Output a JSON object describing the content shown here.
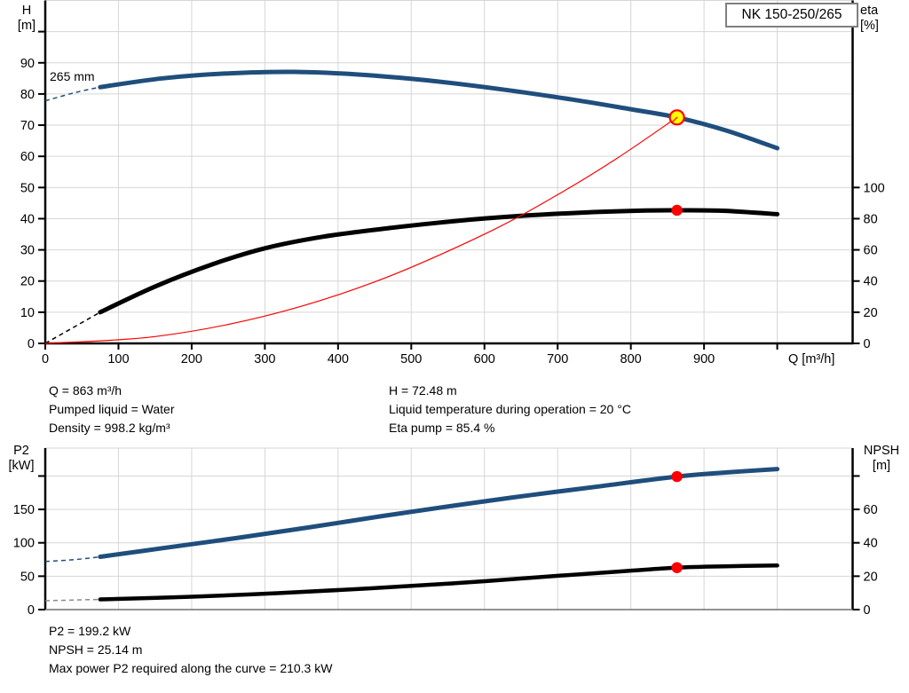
{
  "title_box": "NK 150-250/265",
  "colors": {
    "curve_blue": "#1f4e7c",
    "curve_black": "#000000",
    "system_red": "#fe0000",
    "duty_yellow": "#ffff00",
    "grid": "#d6d6d6",
    "frame": "#000000",
    "axis_gray": "#6e6e6e",
    "box_border": "#7f7f7f"
  },
  "results_top": {
    "left": [
      "Q = 863 m³/h",
      "Pumped liquid = Water",
      "Density = 998.2 kg/m³"
    ],
    "right": [
      "H = 72.48 m",
      "Liquid temperature during operation = 20 °C",
      "Eta pump = 85.4 %"
    ]
  },
  "results_bottom": [
    "P2 = 199.2 kW",
    "NPSH = 25.14 m",
    "Max power P2 required along the curve = 210.3 kW"
  ],
  "chart_data": [
    {
      "type": "line",
      "name": "hq-eta-chart",
      "title": "NK 150-250/265",
      "impeller_label": "265 mm",
      "x_axis": {
        "label": "Q [m³/h]",
        "min": 0,
        "max": 1103,
        "ticks": [
          0,
          100,
          200,
          300,
          400,
          500,
          600,
          700,
          800,
          900
        ],
        "unlabeled_ticks": [
          1000
        ]
      },
      "y_left": {
        "label": "H",
        "unit": "[m]",
        "min": 0,
        "max": 110,
        "ticks": [
          0,
          10,
          20,
          30,
          40,
          50,
          60,
          70,
          80,
          90
        ],
        "unlabeled_ticks": [
          100
        ]
      },
      "y_right": {
        "label": "eta",
        "unit": "[%]",
        "min": 0,
        "max": 220,
        "ticks": [
          0,
          20,
          40,
          60,
          80,
          100
        ],
        "unlabeled_ticks": []
      },
      "series": [
        {
          "name": "head-curve",
          "axis": "left",
          "color": "#1f4e7c",
          "width": 5,
          "dash_points": [
            [
              0,
              77.8
            ],
            [
              40,
              80.4
            ],
            [
              75,
              82.2
            ]
          ],
          "points": [
            [
              75,
              82.2
            ],
            [
              160,
              85.0
            ],
            [
              250,
              86.6
            ],
            [
              340,
              87.1
            ],
            [
              430,
              86.2
            ],
            [
              520,
              84.4
            ],
            [
              620,
              81.6
            ],
            [
              720,
              78.2
            ],
            [
              800,
              75.1
            ],
            [
              863,
              72.48
            ],
            [
              930,
              68.3
            ],
            [
              1000,
              62.6
            ]
          ]
        },
        {
          "name": "efficiency-curve",
          "axis": "right",
          "color": "#000000",
          "width": 5,
          "dash_points": [
            [
              0,
              0
            ],
            [
              75,
              20
            ]
          ],
          "points": [
            [
              75,
              20
            ],
            [
              150,
              36.5
            ],
            [
              230,
              51
            ],
            [
              300,
              61
            ],
            [
              380,
              68.5
            ],
            [
              470,
              74
            ],
            [
              560,
              78.5
            ],
            [
              650,
              81.8
            ],
            [
              740,
              84
            ],
            [
              820,
              85.2
            ],
            [
              863,
              85.4
            ],
            [
              925,
              85.1
            ],
            [
              1000,
              82.9
            ]
          ]
        },
        {
          "name": "system-curve",
          "axis": "left",
          "color": "#fe0000",
          "width": 1.2,
          "points": [
            [
              0,
              0
            ],
            [
              150,
              2.19
            ],
            [
              300,
              8.76
            ],
            [
              450,
              19.71
            ],
            [
              600,
              35.04
            ],
            [
              700,
              47.69
            ],
            [
              780,
              59.2
            ],
            [
              863,
              72.48
            ]
          ]
        }
      ],
      "markers": [
        {
          "name": "duty-point-head",
          "x": 863,
          "y": 72.48,
          "axis": "left",
          "r": 8,
          "fill": "#ffff00",
          "stroke": "#fe0000",
          "stroke_width": 2.2,
          "tail": true
        },
        {
          "name": "duty-point-eta",
          "x": 863,
          "y": 85.4,
          "axis": "right",
          "r": 6.2,
          "fill": "#fe0000",
          "stroke": "none",
          "stroke_width": 0,
          "tail": false
        }
      ]
    },
    {
      "type": "line",
      "name": "p2-npsh-chart",
      "title": "",
      "x_axis": {
        "label": "",
        "min": 0,
        "max": 1103,
        "ticks": [
          0,
          100,
          200,
          300,
          400,
          500,
          600,
          700,
          800,
          900
        ],
        "unlabeled_ticks": [
          1000
        ]
      },
      "y_left": {
        "label": "P2",
        "unit": "[kW]",
        "min": 0,
        "max": 241.8,
        "ticks": [
          0,
          50,
          100,
          150
        ],
        "unlabeled_ticks": [
          200
        ]
      },
      "y_right": {
        "label": "NPSH",
        "unit": "[m]",
        "min": 0,
        "max": 96.7,
        "ticks": [
          0,
          20,
          40,
          60
        ],
        "unlabeled_ticks": [
          80
        ]
      },
      "series": [
        {
          "name": "p2-curve",
          "axis": "left",
          "color": "#1f4e7c",
          "width": 5,
          "dash_points": [
            [
              0,
              72
            ],
            [
              40,
              74.8
            ],
            [
              75,
              79
            ]
          ],
          "points": [
            [
              75,
              79
            ],
            [
              160,
              92
            ],
            [
              260,
              107
            ],
            [
              360,
              123
            ],
            [
              460,
              140
            ],
            [
              560,
              156
            ],
            [
              660,
              171
            ],
            [
              760,
              185
            ],
            [
              863,
              199.2
            ],
            [
              940,
              206
            ],
            [
              1000,
              210.5
            ]
          ]
        },
        {
          "name": "npsh-curve",
          "axis": "right",
          "color": "#000000",
          "width": 4.5,
          "dash_points": [
            [
              0,
              5.3
            ],
            [
              75,
              6.1
            ]
          ],
          "dash_color": "#8a8a8a",
          "points": [
            [
              75,
              6.1
            ],
            [
              200,
              7.7
            ],
            [
              320,
              9.9
            ],
            [
              440,
              12.6
            ],
            [
              560,
              15.8
            ],
            [
              680,
              19.6
            ],
            [
              790,
              23
            ],
            [
              863,
              25.14
            ],
            [
              935,
              26
            ],
            [
              1000,
              26.4
            ]
          ]
        }
      ],
      "markers": [
        {
          "name": "duty-point-p2",
          "x": 863,
          "y": 199.2,
          "axis": "left",
          "r": 6.2,
          "fill": "#fe0000",
          "stroke": "none",
          "stroke_width": 0,
          "tail": false
        },
        {
          "name": "duty-point-npsh",
          "x": 863,
          "y": 25.14,
          "axis": "right",
          "r": 6.2,
          "fill": "#fe0000",
          "stroke": "none",
          "stroke_width": 0,
          "tail": false
        }
      ]
    }
  ]
}
